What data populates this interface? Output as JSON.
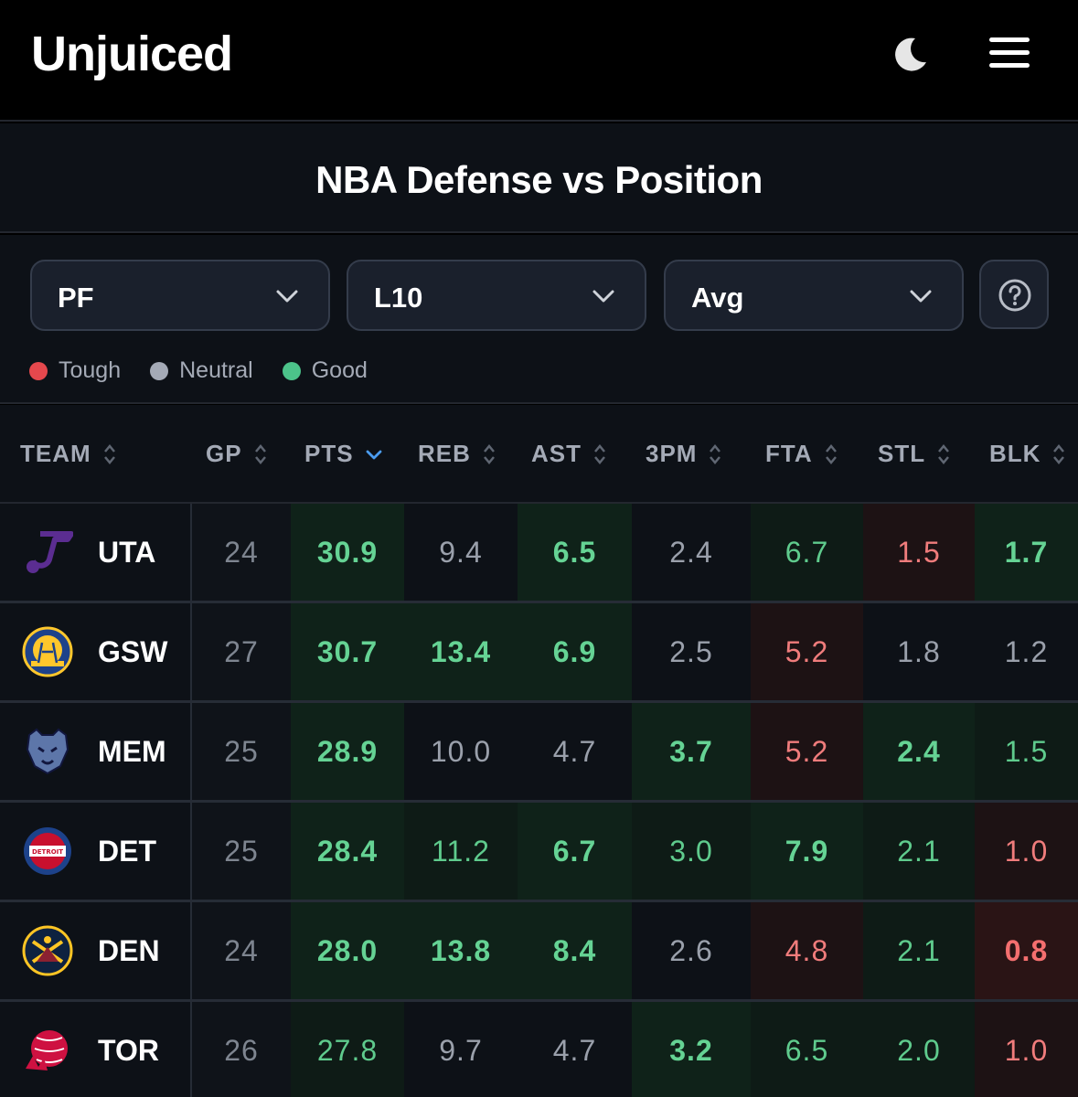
{
  "app": {
    "title": "Unjuiced",
    "theme_icon": "moon-icon",
    "menu_icon": "hamburger-menu-icon"
  },
  "page": {
    "title": "NBA Defense vs Position"
  },
  "filters": {
    "position": "PF",
    "range": "L10",
    "stat": "Avg",
    "help_icon": "question-circle-icon"
  },
  "legend": [
    {
      "label": "Tough",
      "color": "#e5484d"
    },
    {
      "label": "Neutral",
      "color": "#a4aab6"
    },
    {
      "label": "Good",
      "color": "#4cc38a"
    }
  ],
  "columns": [
    "TEAM",
    "GP",
    "PTS",
    "REB",
    "AST",
    "3PM",
    "FTA",
    "STL",
    "BLK"
  ],
  "sorted_column": "PTS",
  "sort_direction": "desc",
  "rows": [
    {
      "team": "UTA",
      "logo": "utah-jazz-logo",
      "gp": "24",
      "pts": "30.9",
      "reb": "9.4",
      "ast": "6.5",
      "tpm": "2.4",
      "fta": "6.7",
      "stl": "1.5",
      "blk": "1.7",
      "tones": [
        "good-strong",
        "neutral",
        "good-strong",
        "neutral",
        "good",
        "tough",
        "good-strong"
      ]
    },
    {
      "team": "GSW",
      "logo": "golden-state-warriors-logo",
      "gp": "27",
      "pts": "30.7",
      "reb": "13.4",
      "ast": "6.9",
      "tpm": "2.5",
      "fta": "5.2",
      "stl": "1.8",
      "blk": "1.2",
      "tones": [
        "good-strong",
        "good-strong",
        "good-strong",
        "neutral",
        "tough",
        "neutral",
        "neutral"
      ]
    },
    {
      "team": "MEM",
      "logo": "memphis-grizzlies-logo",
      "gp": "25",
      "pts": "28.9",
      "reb": "10.0",
      "ast": "4.7",
      "tpm": "3.7",
      "fta": "5.2",
      "stl": "2.4",
      "blk": "1.5",
      "tones": [
        "good-strong",
        "neutral",
        "neutral",
        "good-strong",
        "tough",
        "good-strong",
        "good"
      ]
    },
    {
      "team": "DET",
      "logo": "detroit-pistons-logo",
      "gp": "25",
      "pts": "28.4",
      "reb": "11.2",
      "ast": "6.7",
      "tpm": "3.0",
      "fta": "7.9",
      "stl": "2.1",
      "blk": "1.0",
      "tones": [
        "good-strong",
        "good",
        "good-strong",
        "good",
        "good-strong",
        "good",
        "tough"
      ]
    },
    {
      "team": "DEN",
      "logo": "denver-nuggets-logo",
      "gp": "24",
      "pts": "28.0",
      "reb": "13.8",
      "ast": "8.4",
      "tpm": "2.6",
      "fta": "4.8",
      "stl": "2.1",
      "blk": "0.8",
      "tones": [
        "good-strong",
        "good-strong",
        "good-strong",
        "neutral",
        "tough",
        "good",
        "tough-strong"
      ]
    },
    {
      "team": "TOR",
      "logo": "toronto-raptors-logo",
      "gp": "26",
      "pts": "27.8",
      "reb": "9.7",
      "ast": "4.7",
      "tpm": "3.2",
      "fta": "6.5",
      "stl": "2.0",
      "blk": "1.0",
      "tones": [
        "good",
        "neutral",
        "neutral",
        "good-strong",
        "good",
        "good",
        "tough"
      ]
    }
  ]
}
